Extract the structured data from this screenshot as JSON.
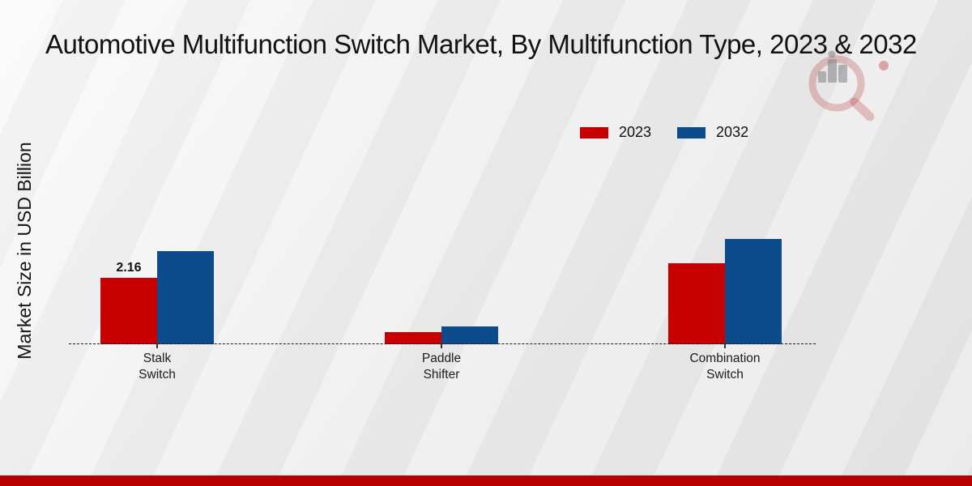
{
  "page": {
    "title": "Automotive Multifunction Switch Market, By Multifunction Type, 2023 & 2032"
  },
  "colors": {
    "series_2023": "#c60000",
    "series_2032": "#0d4c8c",
    "footer_band": "#b80000",
    "background": "#ececec",
    "text": "#111111"
  },
  "icons": {
    "watermark": "magnifier-bar-chart-logo"
  },
  "chart_data": {
    "type": "bar",
    "title": "Automotive Multifunction Switch Market, By Multifunction Type, 2023 & 2032",
    "xlabel": "",
    "ylabel": "Market Size in USD Billion",
    "categories": [
      "Stalk Switch",
      "Paddle Shifter",
      "Combination Switch"
    ],
    "series": [
      {
        "name": "2023",
        "color": "#c60000",
        "values": [
          2.16,
          0.4,
          2.63
        ]
      },
      {
        "name": "2032",
        "color": "#0d4c8c",
        "values": [
          3.03,
          0.58,
          3.42
        ]
      }
    ],
    "data_labels": [
      {
        "series_index": 0,
        "category_index": 0,
        "text": "2.16"
      }
    ],
    "legend_position": "top-right",
    "grid": false,
    "baseline_style": "dashed",
    "ylim": [
      0,
      4.2
    ]
  }
}
